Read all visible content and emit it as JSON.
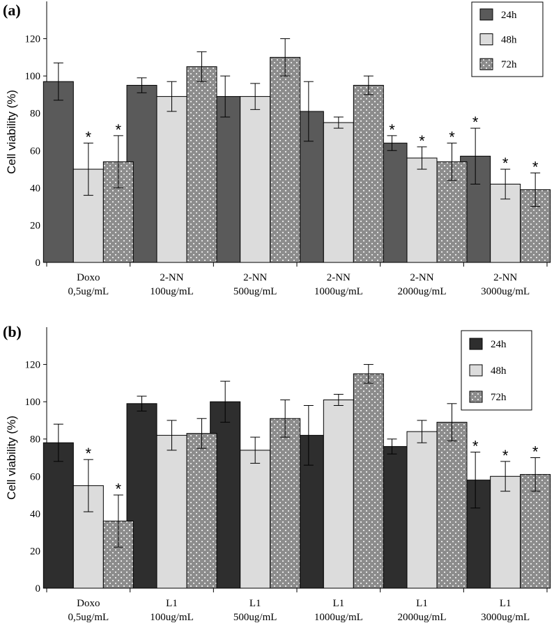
{
  "colors": {
    "panel_a": {
      "s24": "#5a5a5a",
      "s48": "#dcdcdc",
      "s72": "#8c8c8c"
    },
    "panel_b": {
      "s24": "#2e2e2e",
      "s48": "#dcdcdc",
      "s72": "#8c8c8c"
    }
  },
  "chart_data": [
    {
      "type": "bar",
      "panel_label": "(a)",
      "ylabel": "Cell viability (%)",
      "ylim": [
        0,
        140
      ],
      "yticks": [
        0,
        20,
        40,
        60,
        80,
        100,
        120
      ],
      "categories": [
        [
          "Doxo",
          "0,5ug/mL"
        ],
        [
          "2-NN",
          "100ug/mL"
        ],
        [
          "2-NN",
          "500ug/mL"
        ],
        [
          "2-NN",
          "1000ug/mL"
        ],
        [
          "2-NN",
          "2000ug/mL"
        ],
        [
          "2-NN",
          "3000ug/mL"
        ]
      ],
      "legend": {
        "position": "top-right"
      },
      "series": [
        {
          "name": "24h",
          "pattern": "solid",
          "values": [
            97,
            95,
            89,
            81,
            64,
            57
          ],
          "errors": [
            10,
            4,
            11,
            16,
            4,
            15
          ],
          "significant": [
            false,
            false,
            false,
            false,
            true,
            true
          ]
        },
        {
          "name": "48h",
          "pattern": "light",
          "values": [
            50,
            89,
            89,
            75,
            56,
            42
          ],
          "errors": [
            14,
            8,
            7,
            3,
            6,
            8
          ],
          "significant": [
            true,
            false,
            false,
            false,
            true,
            true
          ]
        },
        {
          "name": "72h",
          "pattern": "dotted",
          "values": [
            54,
            105,
            110,
            95,
            54,
            39
          ],
          "errors": [
            14,
            8,
            10,
            5,
            10,
            9
          ],
          "significant": [
            true,
            false,
            false,
            false,
            true,
            true
          ]
        }
      ]
    },
    {
      "type": "bar",
      "panel_label": "(b)",
      "ylabel": "Cell viability (%)",
      "ylim": [
        0,
        140
      ],
      "yticks": [
        0,
        20,
        40,
        60,
        80,
        100,
        120
      ],
      "categories": [
        [
          "Doxo",
          "0,5ug/mL"
        ],
        [
          "L1",
          "100ug/mL"
        ],
        [
          "L1",
          "500ug/mL"
        ],
        [
          "L1",
          "1000ug/mL"
        ],
        [
          "L1",
          "2000ug/mL"
        ],
        [
          "L1",
          "3000ug/mL"
        ]
      ],
      "legend": {
        "position": "top-right"
      },
      "series": [
        {
          "name": "24h",
          "pattern": "solid",
          "values": [
            78,
            99,
            100,
            82,
            76,
            58
          ],
          "errors": [
            10,
            4,
            11,
            16,
            4,
            15
          ],
          "significant": [
            false,
            false,
            false,
            false,
            false,
            true
          ]
        },
        {
          "name": "48h",
          "pattern": "light",
          "values": [
            55,
            82,
            74,
            101,
            84,
            60
          ],
          "errors": [
            14,
            8,
            7,
            3,
            6,
            8
          ],
          "significant": [
            true,
            false,
            false,
            false,
            false,
            true
          ]
        },
        {
          "name": "72h",
          "pattern": "dotted",
          "values": [
            36,
            83,
            91,
            115,
            89,
            61
          ],
          "errors": [
            14,
            8,
            10,
            5,
            10,
            9
          ],
          "significant": [
            true,
            false,
            false,
            false,
            false,
            true
          ]
        }
      ]
    }
  ]
}
